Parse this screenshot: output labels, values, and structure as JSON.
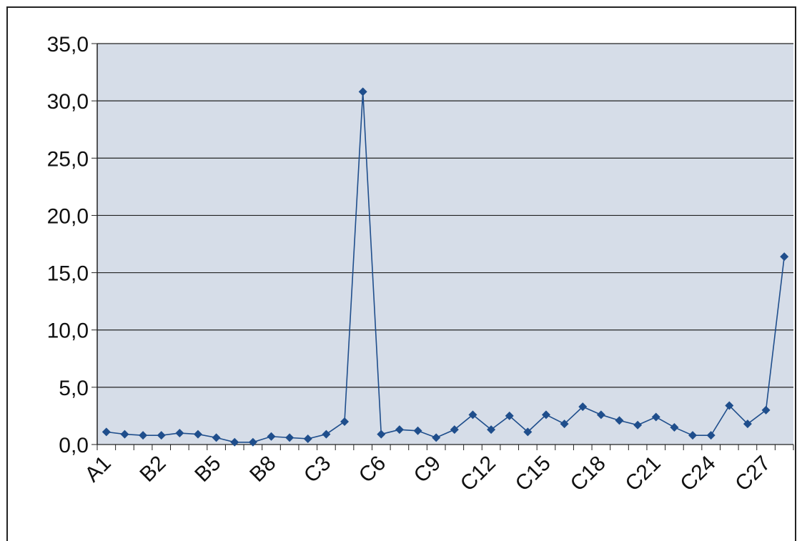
{
  "chart_data": {
    "type": "line",
    "categories": [
      "A1",
      null,
      null,
      "B2",
      null,
      null,
      "B5",
      null,
      null,
      "B8",
      null,
      null,
      "C3",
      null,
      null,
      "C6",
      null,
      null,
      "C9",
      null,
      null,
      "C12",
      null,
      null,
      "C15",
      null,
      null,
      "C18",
      null,
      null,
      "C21",
      null,
      null,
      "C24",
      null,
      null,
      "C27",
      null
    ],
    "series": [
      {
        "color": "#1f4e8c",
        "values": [
          1.1,
          0.9,
          0.8,
          0.8,
          1.0,
          0.9,
          0.6,
          0.2,
          0.2,
          0.7,
          0.6,
          0.5,
          0.9,
          2.0,
          30.8,
          0.9,
          1.3,
          1.2,
          0.6,
          1.3,
          2.6,
          1.3,
          2.5,
          1.1,
          2.6,
          1.8,
          3.3,
          2.6,
          2.1,
          1.7,
          2.4,
          1.5,
          0.8,
          0.8,
          3.4,
          1.8,
          3.0,
          16.4
        ]
      }
    ],
    "ylim": [
      0,
      35
    ],
    "yticks": [
      {
        "value": 0,
        "label": "0,0"
      },
      {
        "value": 5,
        "label": "5,0"
      },
      {
        "value": 10,
        "label": "10,0"
      },
      {
        "value": 15,
        "label": "15,0"
      },
      {
        "value": 20,
        "label": "20,0"
      },
      {
        "value": 25,
        "label": "25,0"
      },
      {
        "value": 30,
        "label": "30,0"
      },
      {
        "value": 35,
        "label": "35,0"
      }
    ],
    "grid": true
  }
}
